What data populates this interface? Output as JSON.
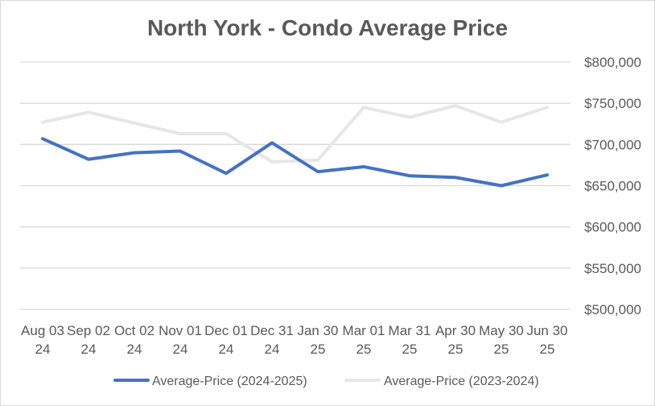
{
  "chart_data": {
    "type": "line",
    "title": "North York - Condo Average Price",
    "xlabel": "",
    "ylabel": "",
    "categories": [
      [
        "Aug 03",
        "24"
      ],
      [
        "Sep 02",
        "24"
      ],
      [
        "Oct 02",
        "24"
      ],
      [
        "Nov 01",
        "24"
      ],
      [
        "Dec 01",
        "24"
      ],
      [
        "Dec 31",
        "24"
      ],
      [
        "Jan 30",
        "25"
      ],
      [
        "Mar 01",
        "25"
      ],
      [
        "Mar 31",
        "25"
      ],
      [
        "Apr 30",
        "25"
      ],
      [
        "May 30",
        "25"
      ],
      [
        "Jun 30",
        "25"
      ]
    ],
    "ylim": [
      500000,
      800000
    ],
    "yticks": [
      500000,
      550000,
      600000,
      650000,
      700000,
      750000,
      800000
    ],
    "ytick_labels": [
      "$500,000",
      "$550,000",
      "$600,000",
      "$650,000",
      "$700,000",
      "$750,000",
      "$800,000"
    ],
    "y_axis_side": "right",
    "grid": true,
    "legend_position": "bottom",
    "series": [
      {
        "name": "Average-Price (2024-2025)",
        "color": "#4472c4",
        "values": [
          707000,
          682000,
          690000,
          692000,
          665000,
          702000,
          667000,
          673000,
          662000,
          660000,
          650000,
          663000
        ]
      },
      {
        "name": "Average-Price (2023-2024)",
        "color": "#e7e6e6",
        "values": [
          727000,
          739000,
          726000,
          713000,
          713000,
          679000,
          681000,
          745000,
          733000,
          747000,
          727000,
          745000
        ]
      }
    ]
  }
}
